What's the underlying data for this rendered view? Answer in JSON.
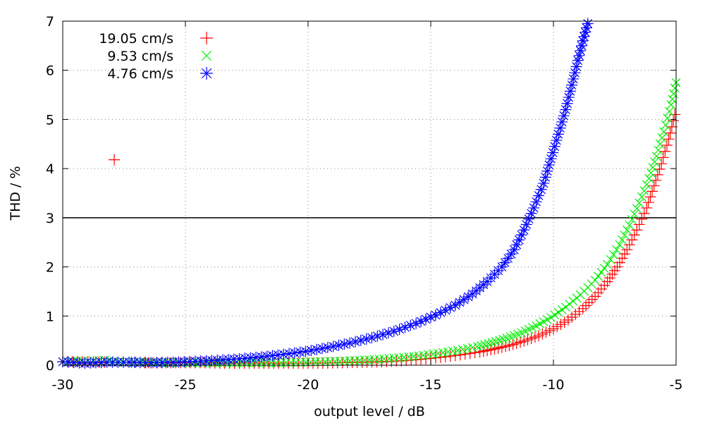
{
  "chart_data": {
    "type": "scatter",
    "xlabel": "output level / dB",
    "ylabel": "THD / %",
    "xlim": [
      -30,
      -5
    ],
    "ylim": [
      0,
      7
    ],
    "x_ticks": [
      -30,
      -25,
      -20,
      -15,
      -10,
      -5
    ],
    "y_ticks": [
      0,
      1,
      2,
      3,
      4,
      5,
      6,
      7
    ],
    "grid": "dotted",
    "legend_position": "top-left",
    "reference_line_y": 3,
    "series": [
      {
        "name": "19.05 cm/s",
        "color": "#ff0000",
        "marker": "plus",
        "points": [
          [
            -30.0,
            0.07
          ],
          [
            -29.2,
            0.07
          ],
          [
            -28.3,
            0.06
          ],
          [
            -27.9,
            4.18
          ],
          [
            -27.2,
            0.06
          ],
          [
            -26.5,
            0.05
          ],
          [
            -25.8,
            0.05
          ],
          [
            -25.0,
            0.05
          ],
          [
            -24.2,
            0.05
          ],
          [
            -23.4,
            0.04
          ],
          [
            -22.6,
            0.04
          ],
          [
            -21.8,
            0.04
          ],
          [
            -21.0,
            0.04
          ],
          [
            -20.2,
            0.04
          ],
          [
            -19.4,
            0.04
          ],
          [
            -18.6,
            0.05
          ],
          [
            -17.8,
            0.06
          ],
          [
            -17.0,
            0.07
          ],
          [
            -16.2,
            0.09
          ],
          [
            -15.4,
            0.12
          ],
          [
            -14.6,
            0.16
          ],
          [
            -13.8,
            0.21
          ],
          [
            -13.0,
            0.27
          ],
          [
            -12.4,
            0.33
          ],
          [
            -11.8,
            0.4
          ],
          [
            -11.2,
            0.49
          ],
          [
            -10.6,
            0.6
          ],
          [
            -10.0,
            0.74
          ],
          [
            -9.4,
            0.92
          ],
          [
            -8.8,
            1.15
          ],
          [
            -8.3,
            1.4
          ],
          [
            -7.8,
            1.7
          ],
          [
            -7.4,
            2.0
          ],
          [
            -7.0,
            2.35
          ],
          [
            -6.6,
            2.75
          ],
          [
            -6.2,
            3.2
          ],
          [
            -5.9,
            3.65
          ],
          [
            -5.6,
            4.1
          ],
          [
            -5.3,
            4.6
          ],
          [
            -5.05,
            5.1
          ]
        ]
      },
      {
        "name": "9.53 cm/s",
        "color": "#00ee00",
        "marker": "x",
        "points": [
          [
            -30.0,
            0.07
          ],
          [
            -29.2,
            0.08
          ],
          [
            -28.3,
            0.1
          ],
          [
            -27.5,
            0.06
          ],
          [
            -26.7,
            0.06
          ],
          [
            -25.9,
            0.05
          ],
          [
            -25.1,
            0.05
          ],
          [
            -24.3,
            0.05
          ],
          [
            -23.5,
            0.05
          ],
          [
            -22.7,
            0.05
          ],
          [
            -21.9,
            0.05
          ],
          [
            -21.1,
            0.05
          ],
          [
            -20.3,
            0.06
          ],
          [
            -19.5,
            0.07
          ],
          [
            -18.7,
            0.08
          ],
          [
            -17.9,
            0.1
          ],
          [
            -17.1,
            0.12
          ],
          [
            -16.3,
            0.15
          ],
          [
            -15.5,
            0.19
          ],
          [
            -14.7,
            0.24
          ],
          [
            -13.9,
            0.3
          ],
          [
            -13.1,
            0.38
          ],
          [
            -12.5,
            0.46
          ],
          [
            -11.9,
            0.55
          ],
          [
            -11.3,
            0.66
          ],
          [
            -10.7,
            0.8
          ],
          [
            -10.1,
            0.97
          ],
          [
            -9.5,
            1.18
          ],
          [
            -8.9,
            1.43
          ],
          [
            -8.3,
            1.73
          ],
          [
            -7.8,
            2.05
          ],
          [
            -7.3,
            2.45
          ],
          [
            -6.9,
            2.85
          ],
          [
            -6.5,
            3.3
          ],
          [
            -6.1,
            3.8
          ],
          [
            -5.8,
            4.25
          ],
          [
            -5.5,
            4.75
          ],
          [
            -5.2,
            5.3
          ],
          [
            -5.0,
            5.75
          ]
        ]
      },
      {
        "name": "4.76 cm/s",
        "color": "#0000ff",
        "marker": "star",
        "points": [
          [
            -30.0,
            0.07
          ],
          [
            -29.1,
            0.04
          ],
          [
            -28.2,
            0.06
          ],
          [
            -27.3,
            0.06
          ],
          [
            -26.4,
            0.05
          ],
          [
            -25.5,
            0.06
          ],
          [
            -24.6,
            0.08
          ],
          [
            -23.7,
            0.1
          ],
          [
            -22.8,
            0.13
          ],
          [
            -21.9,
            0.17
          ],
          [
            -21.0,
            0.22
          ],
          [
            -20.1,
            0.28
          ],
          [
            -19.2,
            0.36
          ],
          [
            -18.3,
            0.45
          ],
          [
            -17.4,
            0.56
          ],
          [
            -16.5,
            0.69
          ],
          [
            -15.6,
            0.85
          ],
          [
            -14.8,
            1.02
          ],
          [
            -14.0,
            1.22
          ],
          [
            -13.3,
            1.45
          ],
          [
            -12.7,
            1.7
          ],
          [
            -12.1,
            2.0
          ],
          [
            -11.6,
            2.35
          ],
          [
            -11.2,
            2.75
          ],
          [
            -10.8,
            3.2
          ],
          [
            -10.4,
            3.7
          ],
          [
            -10.1,
            4.2
          ],
          [
            -9.8,
            4.7
          ],
          [
            -9.5,
            5.2
          ],
          [
            -9.25,
            5.7
          ],
          [
            -9.0,
            6.2
          ],
          [
            -8.8,
            6.6
          ],
          [
            -8.6,
            6.95
          ]
        ]
      }
    ]
  }
}
